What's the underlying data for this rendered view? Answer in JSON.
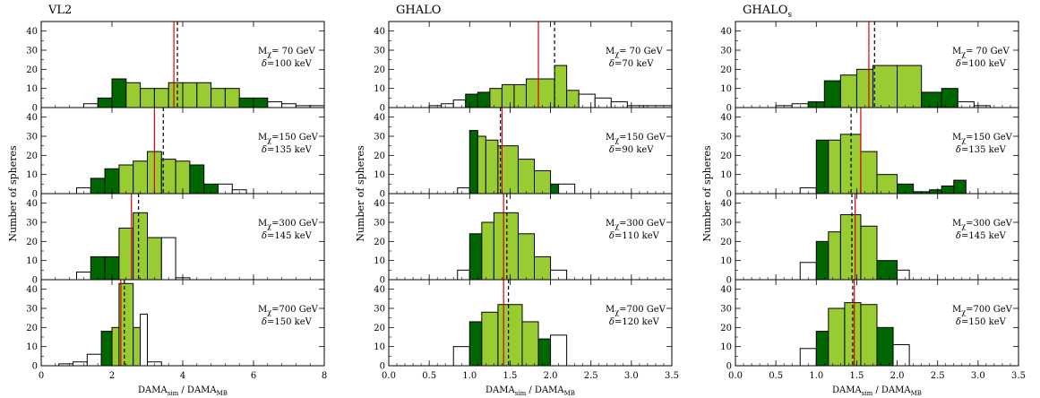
{
  "figure": {
    "ylabel": "Number of spheres",
    "xlabel_main": "DAMA",
    "xlabel_sub_num": "sim",
    "xlabel_sep": " / DAMA",
    "xlabel_sub_den": "MB",
    "colors": {
      "mid": "#99cc33",
      "outer": "#006600",
      "tail": "#ffffff",
      "mean": "#dd0000",
      "median": "#000000"
    }
  },
  "chart_data": [
    {
      "type": "histogram",
      "title": "VL2",
      "xlim": [
        0,
        8
      ],
      "ylim": [
        0,
        45
      ],
      "xticks": [
        0,
        2,
        4,
        6,
        8
      ],
      "yticks": [
        0,
        10,
        20,
        30,
        40
      ],
      "panels": [
        {
          "mass_label": "M",
          "mass_sub": "χ",
          "mass_value": "= 70 GeV",
          "delta_label": "δ",
          "delta_value": "=100 keV",
          "bins": [
            [
              0.8,
              1.2,
              0,
              "tail"
            ],
            [
              1.2,
              1.6,
              2,
              "tail"
            ],
            [
              1.6,
              2.0,
              5,
              "outer"
            ],
            [
              2.0,
              2.4,
              15,
              "outer"
            ],
            [
              2.4,
              2.8,
              13,
              "mid"
            ],
            [
              2.8,
              3.2,
              10,
              "mid"
            ],
            [
              3.2,
              3.6,
              10,
              "mid"
            ],
            [
              3.6,
              4.0,
              13,
              "mid"
            ],
            [
              4.0,
              4.4,
              13,
              "mid"
            ],
            [
              4.4,
              4.8,
              13,
              "mid"
            ],
            [
              4.8,
              5.2,
              10,
              "mid"
            ],
            [
              5.2,
              5.6,
              10,
              "mid"
            ],
            [
              5.6,
              6.0,
              5,
              "outer"
            ],
            [
              6.0,
              6.4,
              5,
              "outer"
            ],
            [
              6.4,
              6.8,
              3,
              "tail"
            ],
            [
              6.8,
              7.2,
              2,
              "tail"
            ],
            [
              7.2,
              7.6,
              1,
              "tail"
            ],
            [
              7.6,
              8.0,
              1,
              "tail"
            ]
          ],
          "mean": 3.75,
          "median": 3.85
        },
        {
          "mass_label": "M",
          "mass_sub": "χ",
          "mass_value": "=150 GeV",
          "delta_label": "δ",
          "delta_value": "=135 keV",
          "bins": [
            [
              1.0,
              1.4,
              3,
              "tail"
            ],
            [
              1.4,
              1.8,
              8,
              "outer"
            ],
            [
              1.8,
              2.2,
              13,
              "outer"
            ],
            [
              2.2,
              2.6,
              15,
              "mid"
            ],
            [
              2.6,
              3.0,
              17,
              "mid"
            ],
            [
              3.0,
              3.4,
              22,
              "mid"
            ],
            [
              3.4,
              3.8,
              18,
              "mid"
            ],
            [
              3.8,
              4.2,
              17,
              "mid"
            ],
            [
              4.2,
              4.6,
              15,
              "outer"
            ],
            [
              4.6,
              5.0,
              5,
              "outer"
            ],
            [
              5.0,
              5.4,
              5,
              "tail"
            ],
            [
              5.4,
              5.8,
              2,
              "tail"
            ]
          ],
          "mean": 3.2,
          "median": 3.45
        },
        {
          "mass_label": "M",
          "mass_sub": "χ",
          "mass_value": "=300 GeV",
          "delta_label": "δ",
          "delta_value": "=145 keV",
          "bins": [
            [
              1.0,
              1.4,
              4,
              "tail"
            ],
            [
              1.4,
              1.8,
              12,
              "outer"
            ],
            [
              1.8,
              2.2,
              12,
              "outer"
            ],
            [
              2.2,
              2.6,
              27,
              "mid"
            ],
            [
              2.6,
              3.0,
              35,
              "mid"
            ],
            [
              3.0,
              3.4,
              22,
              "mid"
            ],
            [
              3.4,
              3.8,
              22,
              "tail"
            ],
            [
              3.8,
              4.2,
              1,
              "tail"
            ]
          ],
          "mean": 2.55,
          "median": 2.75
        },
        {
          "mass_label": "M",
          "mass_sub": "χ",
          "mass_value": "=700 GeV",
          "delta_label": "δ",
          "delta_value": "=150 keV",
          "bins": [
            [
              0.5,
              0.9,
              1,
              "tail"
            ],
            [
              0.9,
              1.3,
              2,
              "tail"
            ],
            [
              1.3,
              1.7,
              6,
              "tail"
            ],
            [
              1.7,
              2.0,
              18,
              "outer"
            ],
            [
              2.0,
              2.2,
              20,
              "mid"
            ],
            [
              2.2,
              2.6,
              43,
              "mid"
            ],
            [
              2.6,
              2.8,
              20,
              "mid"
            ],
            [
              2.8,
              3.0,
              27,
              "tail"
            ],
            [
              3.0,
              3.4,
              2,
              "tail"
            ]
          ],
          "mean": 2.25,
          "median": 2.35
        }
      ]
    },
    {
      "type": "histogram",
      "title": "GHALO",
      "xlim": [
        0,
        3.5
      ],
      "ylim": [
        0,
        45
      ],
      "xticks": [
        0.0,
        0.5,
        1.0,
        1.5,
        2.0,
        2.5,
        3.0,
        3.5
      ],
      "yticks": [
        0,
        10,
        20,
        30,
        40
      ],
      "panels": [
        {
          "mass_label": "M",
          "mass_sub": "χ",
          "mass_value": "= 70 GeV",
          "delta_label": "δ",
          "delta_value": "=70 keV",
          "bins": [
            [
              0.5,
              0.65,
              1,
              "tail"
            ],
            [
              0.65,
              0.8,
              2,
              "tail"
            ],
            [
              0.8,
              0.95,
              4,
              "tail"
            ],
            [
              0.95,
              1.1,
              7,
              "outer"
            ],
            [
              1.1,
              1.25,
              8,
              "outer"
            ],
            [
              1.25,
              1.4,
              10,
              "mid"
            ],
            [
              1.4,
              1.55,
              12,
              "mid"
            ],
            [
              1.55,
              1.7,
              12,
              "mid"
            ],
            [
              1.7,
              1.85,
              15,
              "mid"
            ],
            [
              1.85,
              2.05,
              15,
              "mid"
            ],
            [
              2.05,
              2.2,
              22,
              "mid"
            ],
            [
              2.2,
              2.35,
              9,
              "mid"
            ],
            [
              2.35,
              2.55,
              7,
              "tail"
            ],
            [
              2.55,
              2.75,
              5,
              "tail"
            ],
            [
              2.75,
              2.95,
              3,
              "tail"
            ],
            [
              2.95,
              3.15,
              1,
              "tail"
            ],
            [
              3.15,
              3.5,
              1,
              "tail"
            ]
          ],
          "mean": 1.85,
          "median": 2.05
        },
        {
          "mass_label": "M",
          "mass_sub": "χ",
          "mass_value": "=150 GeV",
          "delta_label": "δ",
          "delta_value": "=90 keV",
          "bins": [
            [
              0.85,
              1.0,
              3,
              "tail"
            ],
            [
              1.0,
              1.1,
              33,
              "outer"
            ],
            [
              1.1,
              1.2,
              30,
              "mid"
            ],
            [
              1.2,
              1.35,
              28,
              "mid"
            ],
            [
              1.35,
              1.6,
              25,
              "mid"
            ],
            [
              1.6,
              1.8,
              18,
              "mid"
            ],
            [
              1.8,
              2.0,
              12,
              "mid"
            ],
            [
              2.0,
              2.1,
              5,
              "outer"
            ],
            [
              2.1,
              2.3,
              5,
              "tail"
            ]
          ],
          "mean": 1.4,
          "median": 1.38
        },
        {
          "mass_label": "M",
          "mass_sub": "χ",
          "mass_value": "=300 GeV",
          "delta_label": "δ",
          "delta_value": "=110 keV",
          "bins": [
            [
              0.85,
              1.0,
              5,
              "tail"
            ],
            [
              1.0,
              1.15,
              24,
              "outer"
            ],
            [
              1.15,
              1.3,
              30,
              "mid"
            ],
            [
              1.3,
              1.6,
              35,
              "mid"
            ],
            [
              1.6,
              1.8,
              24,
              "mid"
            ],
            [
              1.8,
              2.0,
              12,
              "mid"
            ],
            [
              2.0,
              2.2,
              5,
              "tail"
            ]
          ],
          "mean": 1.42,
          "median": 1.46
        },
        {
          "mass_label": "M",
          "mass_sub": "χ",
          "mass_value": "=700 GeV",
          "delta_label": "δ",
          "delta_value": "=120 keV",
          "bins": [
            [
              0.8,
              1.0,
              10,
              "tail"
            ],
            [
              1.0,
              1.15,
              23,
              "outer"
            ],
            [
              1.15,
              1.35,
              28,
              "mid"
            ],
            [
              1.35,
              1.65,
              32,
              "mid"
            ],
            [
              1.65,
              1.85,
              23,
              "mid"
            ],
            [
              1.85,
              2.0,
              14,
              "outer"
            ],
            [
              2.0,
              2.2,
              16,
              "tail"
            ]
          ],
          "mean": 1.42,
          "median": 1.48
        }
      ]
    },
    {
      "type": "histogram",
      "title": "GHALO",
      "title_sub": "s",
      "xlim": [
        0,
        3.5
      ],
      "ylim": [
        0,
        45
      ],
      "xticks": [
        0.0,
        0.5,
        1.0,
        1.5,
        2.0,
        2.5,
        3.0,
        3.5
      ],
      "yticks": [
        0,
        10,
        20,
        30,
        40
      ],
      "panels": [
        {
          "mass_label": "M",
          "mass_sub": "χ",
          "mass_value": "= 70 GeV",
          "delta_label": "δ",
          "delta_value": "=100 keV",
          "bins": [
            [
              0.5,
              0.7,
              1,
              "tail"
            ],
            [
              0.7,
              0.9,
              2,
              "tail"
            ],
            [
              0.9,
              1.1,
              3,
              "outer"
            ],
            [
              1.1,
              1.3,
              14,
              "outer"
            ],
            [
              1.3,
              1.5,
              17,
              "mid"
            ],
            [
              1.5,
              1.7,
              20,
              "mid"
            ],
            [
              1.7,
              2.0,
              22,
              "mid"
            ],
            [
              2.0,
              2.3,
              22,
              "mid"
            ],
            [
              2.3,
              2.55,
              8,
              "outer"
            ],
            [
              2.55,
              2.75,
              10,
              "outer"
            ],
            [
              2.75,
              2.95,
              3,
              "tail"
            ],
            [
              2.95,
              3.15,
              1,
              "tail"
            ]
          ],
          "mean": 1.65,
          "median": 1.72
        },
        {
          "mass_label": "M",
          "mass_sub": "χ",
          "mass_value": "=150 GeV",
          "delta_label": "δ",
          "delta_value": "=135 keV",
          "bins": [
            [
              0.8,
              1.0,
              3,
              "tail"
            ],
            [
              1.0,
              1.15,
              28,
              "outer"
            ],
            [
              1.15,
              1.3,
              28,
              "mid"
            ],
            [
              1.3,
              1.55,
              31,
              "mid"
            ],
            [
              1.55,
              1.75,
              22,
              "mid"
            ],
            [
              1.75,
              2.0,
              10,
              "mid"
            ],
            [
              2.0,
              2.2,
              5,
              "outer"
            ],
            [
              2.2,
              2.4,
              1,
              "outer"
            ],
            [
              2.4,
              2.55,
              2,
              "outer"
            ],
            [
              2.55,
              2.7,
              4,
              "outer"
            ],
            [
              2.7,
              2.85,
              7,
              "outer"
            ]
          ],
          "mean": 1.55,
          "median": 1.43
        },
        {
          "mass_label": "M",
          "mass_sub": "χ",
          "mass_value": "=300 GeV",
          "delta_label": "δ",
          "delta_value": "=145 keV",
          "bins": [
            [
              0.8,
              1.0,
              9,
              "tail"
            ],
            [
              1.0,
              1.15,
              20,
              "outer"
            ],
            [
              1.15,
              1.3,
              25,
              "mid"
            ],
            [
              1.3,
              1.55,
              34,
              "mid"
            ],
            [
              1.55,
              1.75,
              28,
              "mid"
            ],
            [
              1.75,
              2.0,
              10,
              "outer"
            ],
            [
              2.0,
              2.15,
              5,
              "tail"
            ]
          ],
          "mean": 1.48,
          "median": 1.44
        },
        {
          "mass_label": "M",
          "mass_sub": "χ",
          "mass_value": "=700 GeV",
          "delta_label": "δ",
          "delta_value": "=150 keV",
          "bins": [
            [
              0.8,
              1.0,
              9,
              "tail"
            ],
            [
              1.0,
              1.15,
              18,
              "outer"
            ],
            [
              1.15,
              1.35,
              30,
              "mid"
            ],
            [
              1.35,
              1.55,
              33,
              "mid"
            ],
            [
              1.55,
              1.75,
              32,
              "mid"
            ],
            [
              1.75,
              1.95,
              20,
              "outer"
            ],
            [
              1.95,
              2.15,
              11,
              "tail"
            ]
          ],
          "mean": 1.47,
          "median": 1.45
        }
      ]
    }
  ]
}
